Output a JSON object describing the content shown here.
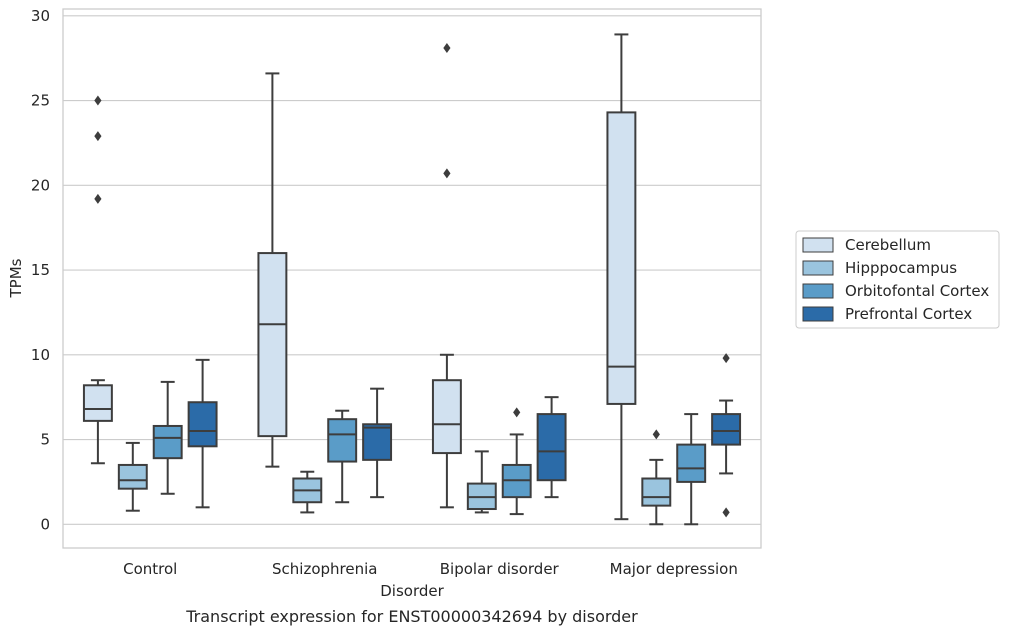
{
  "caption": "Transcript expression for ENST00000342694 by disorder",
  "chart_data": {
    "type": "boxplot",
    "xlabel": "Disorder",
    "ylabel": "TPMs",
    "ylim": [
      -1.4,
      30.4
    ],
    "yticks": [
      0,
      5,
      10,
      15,
      20,
      25,
      30
    ],
    "grid": "horizontal",
    "legend_placement": "right",
    "categories": [
      "Control",
      "Schizophrenia",
      "Bipolar disorder",
      "Major depression"
    ],
    "series": [
      {
        "name": "Cerebellum",
        "color": "#d1e1f0",
        "boxes": [
          {
            "whislo": 3.6,
            "q1": 6.1,
            "med": 6.8,
            "q3": 8.2,
            "whishi": 8.5,
            "fliers": [
              19.2,
              22.9,
              25.0
            ]
          },
          {
            "whislo": 3.4,
            "q1": 5.2,
            "med": 11.8,
            "q3": 16.0,
            "whishi": 26.6,
            "fliers": []
          },
          {
            "whislo": 1.0,
            "q1": 4.2,
            "med": 5.9,
            "q3": 8.5,
            "whishi": 10.0,
            "fliers": [
              20.7,
              28.1
            ]
          },
          {
            "whislo": 0.3,
            "q1": 7.1,
            "med": 9.3,
            "q3": 24.3,
            "whishi": 28.9,
            "fliers": []
          }
        ]
      },
      {
        "name": "Hipppocampus",
        "color": "#9ac4de",
        "boxes": [
          {
            "whislo": 0.8,
            "q1": 2.1,
            "med": 2.6,
            "q3": 3.5,
            "whishi": 4.8,
            "fliers": []
          },
          {
            "whislo": 0.7,
            "q1": 1.3,
            "med": 2.0,
            "q3": 2.7,
            "whishi": 3.1,
            "fliers": []
          },
          {
            "whislo": 0.7,
            "q1": 0.9,
            "med": 1.6,
            "q3": 2.4,
            "whishi": 4.3,
            "fliers": []
          },
          {
            "whislo": 0.0,
            "q1": 1.1,
            "med": 1.6,
            "q3": 2.7,
            "whishi": 3.8,
            "fliers": [
              5.3
            ]
          }
        ]
      },
      {
        "name": "Orbitofontal Cortex",
        "color": "#5a9cc8",
        "boxes": [
          {
            "whislo": 1.8,
            "q1": 3.9,
            "med": 5.1,
            "q3": 5.8,
            "whishi": 8.4,
            "fliers": []
          },
          {
            "whislo": 1.3,
            "q1": 3.7,
            "med": 5.3,
            "q3": 6.2,
            "whishi": 6.7,
            "fliers": []
          },
          {
            "whislo": 0.6,
            "q1": 1.6,
            "med": 2.6,
            "q3": 3.5,
            "whishi": 5.3,
            "fliers": [
              6.6
            ]
          },
          {
            "whislo": 0.0,
            "q1": 2.5,
            "med": 3.3,
            "q3": 4.7,
            "whishi": 6.5,
            "fliers": []
          }
        ]
      },
      {
        "name": "Prefrontal Cortex",
        "color": "#2b6ba8",
        "boxes": [
          {
            "whislo": 1.0,
            "q1": 4.6,
            "med": 5.5,
            "q3": 7.2,
            "whishi": 9.7,
            "fliers": []
          },
          {
            "whislo": 1.6,
            "q1": 3.8,
            "med": 5.7,
            "q3": 5.9,
            "whishi": 8.0,
            "fliers": []
          },
          {
            "whislo": 1.6,
            "q1": 2.6,
            "med": 4.3,
            "q3": 6.5,
            "whishi": 7.5,
            "fliers": []
          },
          {
            "whislo": 3.0,
            "q1": 4.7,
            "med": 5.5,
            "q3": 6.5,
            "whishi": 7.3,
            "fliers": [
              0.7,
              9.8
            ]
          }
        ]
      }
    ]
  }
}
